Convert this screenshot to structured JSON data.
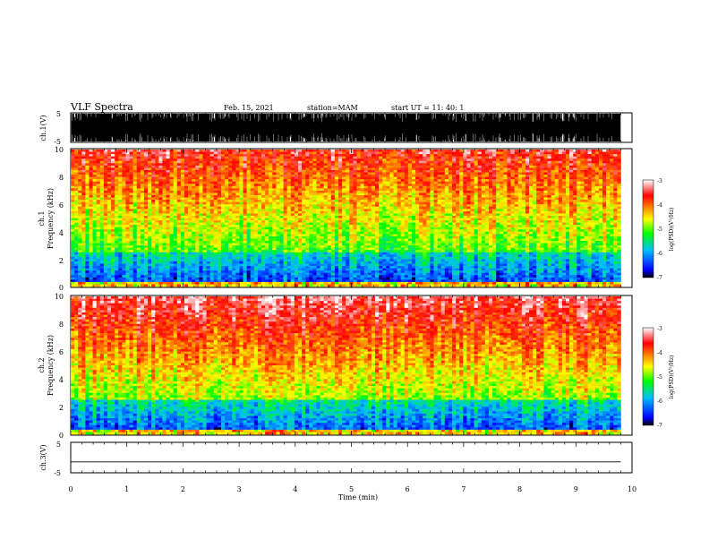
{
  "header": {
    "title": "VLF Spectra",
    "date": "Feb. 15, 2021",
    "station": "station=MAM",
    "start": "start  UT  =   11: 40: 1"
  },
  "chart_data": [
    {
      "type": "line",
      "name": "ch1_waveform",
      "ylabel": "ch.1(V)",
      "ylim": [
        -5,
        5
      ],
      "yticks": [
        "5",
        "-5"
      ],
      "xlim": [
        0,
        10
      ],
      "description_of_signal": "dense black bursts spanning full range"
    },
    {
      "type": "heatmap",
      "name": "ch1_spectrogram",
      "ylabel_top": "ch.1",
      "ylabel": "Frequency (kHz)",
      "ylim": [
        0,
        10
      ],
      "yticks": [
        "0",
        "2",
        "4",
        "6",
        "8",
        "10"
      ],
      "xlim": [
        0,
        10
      ],
      "data_extent_max_x": 9.8,
      "colorbar": {
        "label": "log(PSD)(V²/Hz)",
        "range": [
          -7,
          -3
        ],
        "ticks": [
          "-3",
          "-4",
          "-5",
          "-6",
          "-7"
        ],
        "colors": [
          "#000000",
          "#0000ff",
          "#00bfff",
          "#00ff00",
          "#ffff00",
          "#ff8000",
          "#ff0000",
          "#ffffff"
        ]
      }
    },
    {
      "type": "heatmap",
      "name": "ch2_spectrogram",
      "ylabel_top": "ch.2",
      "ylabel": "Frequency (kHz)",
      "ylim": [
        0,
        10
      ],
      "yticks": [
        "0",
        "2",
        "4",
        "6",
        "8",
        "10"
      ],
      "xlim": [
        0,
        10
      ],
      "data_extent_max_x": 9.8,
      "colorbar": {
        "label": "log(PSD)(V²/Hz)",
        "range": [
          -7,
          -3
        ],
        "ticks": [
          "-3",
          "-4",
          "-5",
          "-6",
          "-7"
        ]
      }
    },
    {
      "type": "line",
      "name": "ch3_waveform",
      "ylabel": "ch.3(V)",
      "ylim": [
        -5,
        5
      ],
      "yticks": [
        "5",
        "-5"
      ],
      "xlim": [
        0,
        10
      ],
      "xticks": [
        "0",
        "1",
        "2",
        "3",
        "4",
        "5",
        "6",
        "7",
        "8",
        "9",
        "10"
      ],
      "xlabel": "Time (min)",
      "series": [
        {
          "x": [
            0,
            9.8
          ],
          "y": [
            -1.5,
            -1.5
          ]
        }
      ]
    }
  ]
}
